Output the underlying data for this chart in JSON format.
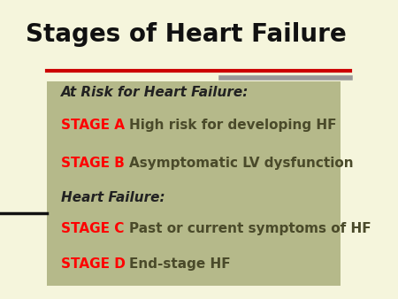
{
  "title": "Stages of Heart Failure",
  "title_fontsize": 20,
  "title_fontweight": "bold",
  "bg_color": "#f5f5dc",
  "box_color": "#b5b98a",
  "red_line_color": "#cc0000",
  "gray_line_color": "#999999",
  "red_text_color": "#ff0000",
  "heading1": "At Risk for Heart Failure:",
  "heading2": "Heart Failure:",
  "stages": [
    {
      "label": "STAGE A",
      "desc": "High risk for developing HF"
    },
    {
      "label": "STAGE B",
      "desc": "Asymptomatic LV dysfunction"
    },
    {
      "label": "STAGE C",
      "desc": "Past or current symptoms of HF"
    },
    {
      "label": "STAGE D",
      "desc": "End-stage HF"
    }
  ]
}
